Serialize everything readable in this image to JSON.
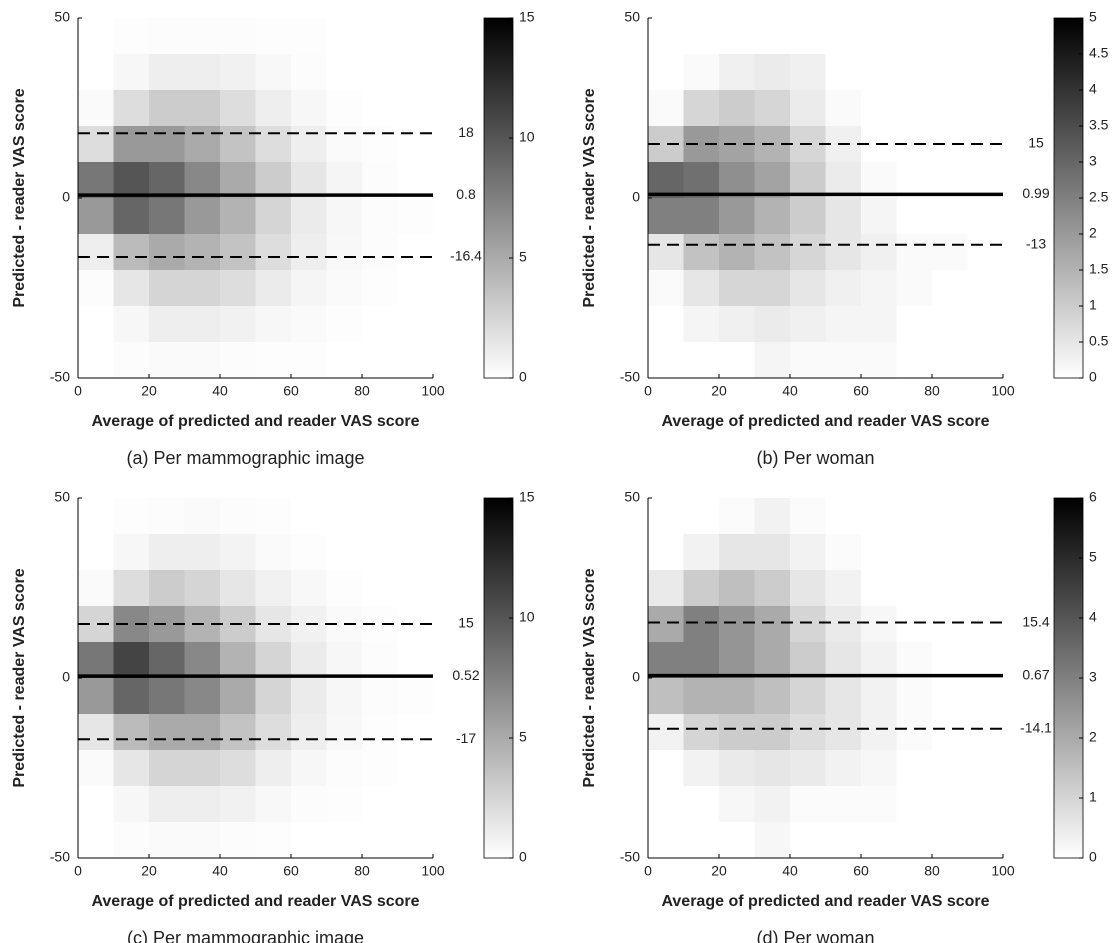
{
  "chart_data": [
    {
      "type": "heatmap",
      "caption": "(a) Per mammographic image",
      "xlabel": "Average of predicted and reader VAS score",
      "ylabel": "Predicted - reader VAS score",
      "xlim": [
        0,
        100
      ],
      "ylim": [
        -50,
        50
      ],
      "xticks": [
        0,
        20,
        40,
        60,
        80,
        100
      ],
      "yticks": [
        -50,
        0,
        50
      ],
      "xbins": [
        0,
        10,
        20,
        30,
        40,
        50,
        60,
        70,
        80,
        90,
        100
      ],
      "ybins": [
        -50,
        -40,
        -30,
        -20,
        -10,
        0,
        10,
        20,
        30,
        40,
        50
      ],
      "z": [
        [
          0,
          0.2,
          0.3,
          0.3,
          0.2,
          0.1,
          0.1,
          0,
          0,
          0
        ],
        [
          0,
          0.5,
          1,
          1,
          0.8,
          0.5,
          0.3,
          0.1,
          0,
          0
        ],
        [
          0.2,
          1.5,
          2.5,
          2.5,
          2,
          1.2,
          0.6,
          0.3,
          0.1,
          0
        ],
        [
          1,
          4,
          5,
          4.5,
          3.5,
          2,
          1,
          0.4,
          0.2,
          0
        ],
        [
          6,
          9,
          8,
          6,
          4.5,
          2.5,
          1.2,
          0.5,
          0.2,
          0.1
        ],
        [
          8,
          10,
          9,
          7,
          5,
          3,
          1.5,
          0.6,
          0.2,
          0
        ],
        [
          2,
          6,
          6,
          5,
          3.5,
          2,
          1,
          0.3,
          0.1,
          0
        ],
        [
          0.3,
          2,
          3,
          3,
          2,
          1,
          0.5,
          0.1,
          0,
          0
        ],
        [
          0,
          0.5,
          1,
          1,
          0.8,
          0.4,
          0.2,
          0,
          0,
          0
        ],
        [
          0,
          0.1,
          0.2,
          0.2,
          0.2,
          0.1,
          0.1,
          0,
          0,
          0
        ]
      ],
      "clim": [
        0,
        15
      ],
      "cticks": [
        0,
        5,
        10,
        15
      ],
      "hlines": [
        {
          "value": 18,
          "style": "dashed"
        },
        {
          "value": 0.8,
          "style": "solid"
        },
        {
          "value": -16.4,
          "style": "dashed"
        }
      ]
    },
    {
      "type": "heatmap",
      "caption": "(b) Per woman",
      "xlabel": "Average of predicted and reader VAS score",
      "ylabel": "Predicted - reader VAS score",
      "xlim": [
        0,
        100
      ],
      "ylim": [
        -50,
        50
      ],
      "xticks": [
        0,
        20,
        40,
        60,
        80,
        100
      ],
      "yticks": [
        -50,
        0,
        50
      ],
      "xbins": [
        0,
        10,
        20,
        30,
        40,
        50,
        60,
        70,
        80,
        90,
        100
      ],
      "ybins": [
        -50,
        -40,
        -30,
        -20,
        -10,
        0,
        10,
        20,
        30,
        40,
        50
      ],
      "z": [
        [
          0,
          0,
          0,
          0.2,
          0.1,
          0.1,
          0.1,
          0,
          0,
          0
        ],
        [
          0,
          0.2,
          0.3,
          0.4,
          0.3,
          0.2,
          0.2,
          0,
          0,
          0
        ],
        [
          0.1,
          0.5,
          0.8,
          0.8,
          0.5,
          0.3,
          0.2,
          0.1,
          0,
          0
        ],
        [
          0.5,
          1.2,
          1.5,
          1.2,
          0.8,
          0.5,
          0.3,
          0.1,
          0.1,
          0
        ],
        [
          2.5,
          2.5,
          2,
          1.5,
          1,
          0.5,
          0.2,
          0,
          0,
          0
        ],
        [
          3,
          2.8,
          2.2,
          1.8,
          1,
          0.4,
          0.1,
          0,
          0,
          0
        ],
        [
          1,
          2,
          1.8,
          1.5,
          0.8,
          0.3,
          0,
          0,
          0,
          0
        ],
        [
          0.1,
          0.8,
          1,
          0.8,
          0.4,
          0.1,
          0,
          0,
          0,
          0
        ],
        [
          0,
          0.1,
          0.3,
          0.4,
          0.3,
          0,
          0,
          0,
          0,
          0
        ],
        [
          0,
          0,
          0,
          0,
          0,
          0,
          0,
          0,
          0,
          0
        ]
      ],
      "clim": [
        0,
        5
      ],
      "cticks": [
        0,
        0.5,
        1,
        1.5,
        2,
        2.5,
        3,
        3.5,
        4,
        4.5,
        5
      ],
      "hlines": [
        {
          "value": 15,
          "style": "dashed"
        },
        {
          "value": 0.99,
          "style": "solid"
        },
        {
          "value": -13,
          "style": "dashed"
        }
      ]
    },
    {
      "type": "heatmap",
      "caption": "(c) Per mammographic image",
      "xlabel": "Average of predicted and reader VAS score",
      "ylabel": "Predicted - reader VAS score",
      "xlim": [
        0,
        100
      ],
      "ylim": [
        -50,
        50
      ],
      "xticks": [
        0,
        20,
        40,
        60,
        80,
        100
      ],
      "yticks": [
        -50,
        0,
        50
      ],
      "xbins": [
        0,
        10,
        20,
        30,
        40,
        50,
        60,
        70,
        80,
        90,
        100
      ],
      "ybins": [
        -50,
        -40,
        -30,
        -20,
        -10,
        0,
        10,
        20,
        30,
        40,
        50
      ],
      "z": [
        [
          0,
          0.2,
          0.3,
          0.3,
          0.2,
          0.1,
          0,
          0,
          0,
          0
        ],
        [
          0,
          0.5,
          1,
          1,
          0.8,
          0.4,
          0.2,
          0.1,
          0,
          0
        ],
        [
          0.3,
          1.5,
          2.5,
          2.5,
          2,
          1,
          0.5,
          0.2,
          0.1,
          0
        ],
        [
          1.5,
          4,
          5,
          5,
          3.5,
          2,
          1,
          0.4,
          0.1,
          0
        ],
        [
          6,
          9,
          8,
          7,
          5,
          2.5,
          1.2,
          0.5,
          0.2,
          0.1
        ],
        [
          8,
          11,
          9,
          7,
          4.5,
          2.5,
          1.2,
          0.5,
          0.2,
          0
        ],
        [
          2.5,
          7,
          6,
          4.5,
          3,
          1.5,
          0.8,
          0.3,
          0.1,
          0
        ],
        [
          0.3,
          2,
          3,
          2.5,
          1.5,
          0.8,
          0.4,
          0.1,
          0,
          0
        ],
        [
          0,
          0.5,
          1,
          1,
          0.7,
          0.3,
          0.1,
          0,
          0,
          0
        ],
        [
          0,
          0.1,
          0.2,
          0.3,
          0.2,
          0.1,
          0,
          0,
          0,
          0
        ]
      ],
      "clim": [
        0,
        15
      ],
      "cticks": [
        0,
        5,
        10,
        15
      ],
      "hlines": [
        {
          "value": 15,
          "style": "dashed"
        },
        {
          "value": 0.52,
          "style": "solid"
        },
        {
          "value": -17,
          "style": "dashed"
        }
      ]
    },
    {
      "type": "heatmap",
      "caption": "(d) Per woman",
      "xlabel": "Average of predicted and reader VAS score",
      "ylabel": "Predicted - reader VAS score",
      "xlim": [
        0,
        100
      ],
      "ylim": [
        -50,
        50
      ],
      "xticks": [
        0,
        20,
        40,
        60,
        80,
        100
      ],
      "yticks": [
        -50,
        0,
        50
      ],
      "xbins": [
        0,
        10,
        20,
        30,
        40,
        50,
        60,
        70,
        80,
        90,
        100
      ],
      "ybins": [
        -50,
        -40,
        -30,
        -20,
        -10,
        0,
        10,
        20,
        30,
        40,
        50
      ],
      "z": [
        [
          0,
          0,
          0,
          0.2,
          0,
          0,
          0,
          0,
          0,
          0
        ],
        [
          0,
          0,
          0.2,
          0.3,
          0.1,
          0.1,
          0.1,
          0,
          0,
          0
        ],
        [
          0,
          0.3,
          0.5,
          0.6,
          0.5,
          0.3,
          0.2,
          0,
          0,
          0
        ],
        [
          0.3,
          1,
          1.2,
          1.2,
          0.8,
          0.6,
          0.3,
          0.1,
          0,
          0
        ],
        [
          1.5,
          1.8,
          1.8,
          1.5,
          1,
          0.6,
          0.3,
          0.1,
          0,
          0
        ],
        [
          3,
          3,
          2.5,
          2,
          1.2,
          0.6,
          0.3,
          0.1,
          0,
          0
        ],
        [
          2,
          3,
          2.5,
          2,
          1,
          0.5,
          0.2,
          0,
          0,
          0
        ],
        [
          0.5,
          1.2,
          1.5,
          1.2,
          0.6,
          0.3,
          0,
          0,
          0,
          0
        ],
        [
          0,
          0.3,
          0.6,
          0.6,
          0.3,
          0.1,
          0,
          0,
          0,
          0
        ],
        [
          0,
          0,
          0.1,
          0.3,
          0.1,
          0,
          0,
          0,
          0,
          0
        ]
      ],
      "clim": [
        0,
        6
      ],
      "cticks": [
        0,
        1,
        2,
        3,
        4,
        5,
        6
      ],
      "hlines": [
        {
          "value": 15.4,
          "style": "dashed"
        },
        {
          "value": 0.67,
          "style": "solid"
        },
        {
          "value": -14.1,
          "style": "dashed"
        }
      ]
    }
  ]
}
